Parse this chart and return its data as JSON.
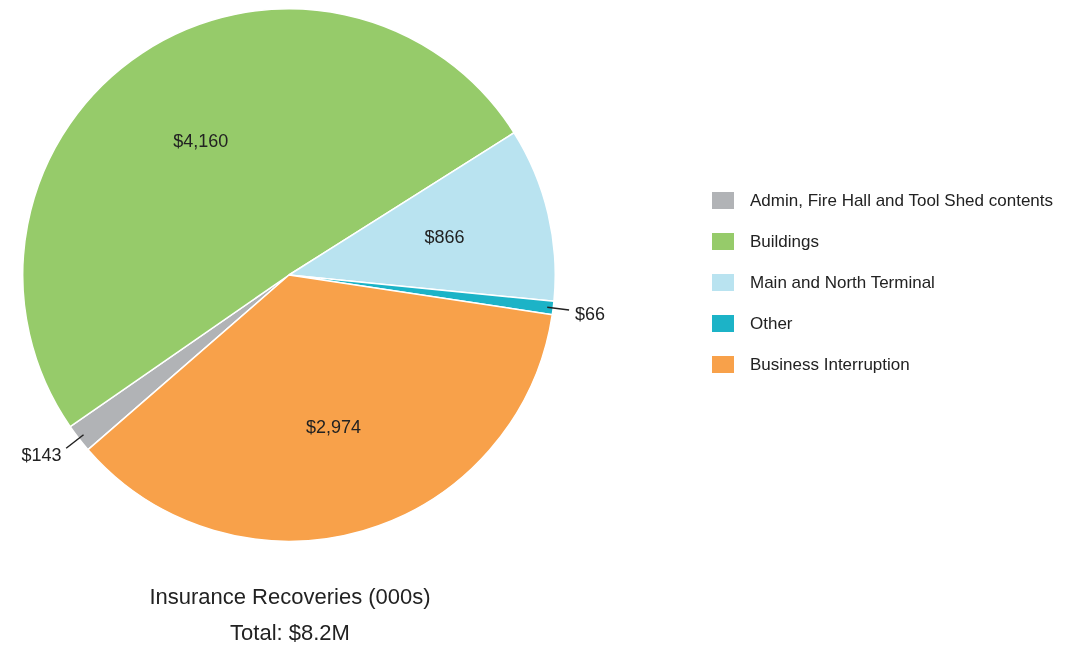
{
  "chart_data": {
    "type": "pie",
    "title": "Insurance Recoveries (000s)",
    "subtitle": "Total: $8.2M",
    "categories": [
      "Admin, Fire Hall and Tool Shed contents",
      "Buildings",
      "Main and North Terminal",
      "Other",
      "Business Interruption"
    ],
    "values": [
      143,
      4160,
      866,
      66,
      2974
    ],
    "value_labels": [
      "$143",
      "$4,160",
      "$866",
      "$66",
      "$2,974"
    ],
    "colors": [
      "#b1b3b6",
      "#96cb6a",
      "#b9e3f0",
      "#1cb3c7",
      "#f8a14a"
    ],
    "legend": "right"
  }
}
